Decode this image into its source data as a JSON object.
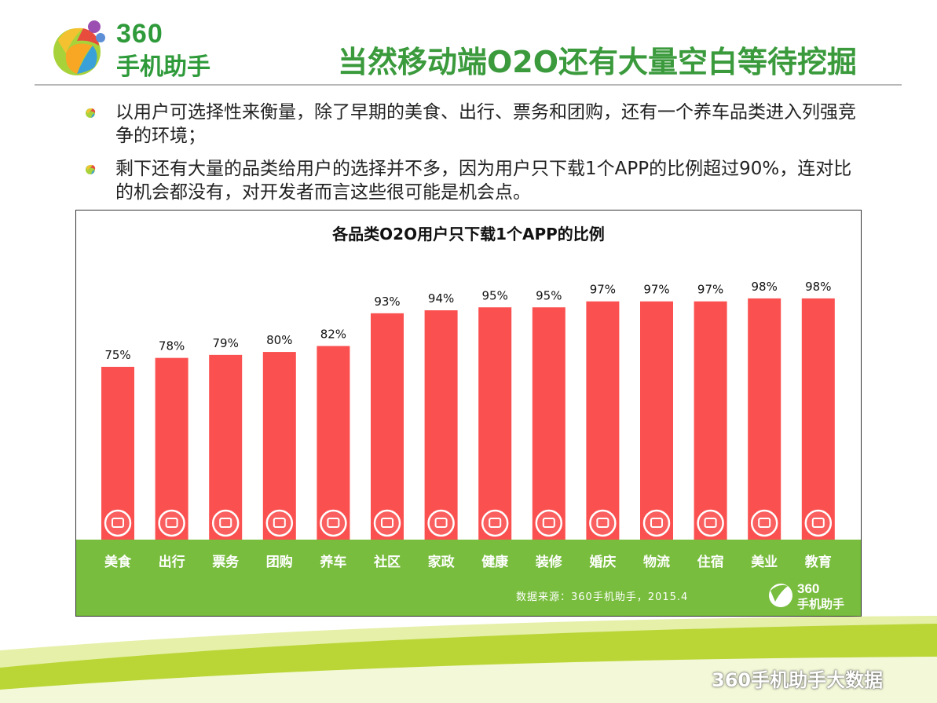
{
  "header": {
    "logo_top": "360",
    "logo_bottom": "手机助手",
    "title": "当然移动端O2O还有大量空白等待挖掘"
  },
  "bullets": [
    "以用户可选择性来衡量，除了早期的美食、出行、票务和团购，还有一个养车品类进入列强竞争的环境；",
    "剩下还有大量的品类给用户的选择并不多，因为用户只下载1个APP的比例超过90%，连对比的机会都没有，对开发者而言这些很可能是机会点。"
  ],
  "chart_data": {
    "type": "bar",
    "title": "各品类O2O用户只下载1个APP的比例",
    "categories": [
      "美食",
      "出行",
      "票务",
      "团购",
      "养车",
      "社区",
      "家政",
      "健康",
      "装修",
      "婚庆",
      "物流",
      "住宿",
      "美业",
      "教育"
    ],
    "values": [
      75,
      78,
      79,
      80,
      82,
      93,
      94,
      95,
      95,
      97,
      97,
      97,
      98,
      98
    ],
    "value_labels": [
      "75%",
      "78%",
      "79%",
      "80%",
      "82%",
      "93%",
      "94%",
      "95%",
      "95%",
      "97%",
      "97%",
      "97%",
      "98%",
      "98%"
    ],
    "icons": [
      "food-icon",
      "car-icon",
      "ticket-icon",
      "shopping-cart-icon",
      "car-service-icon",
      "home-icon",
      "vacuum-icon",
      "heart-pulse-icon",
      "paint-roller-icon",
      "wedding-icon",
      "package-icon",
      "bed-icon",
      "beauty-icon",
      "education-icon"
    ],
    "ylim": [
      0,
      100
    ],
    "source": "数据来源：360手机助手，2015.4",
    "bar_color": "#fb5050",
    "band_color": "#78bd3e"
  },
  "chart_logo": {
    "top": "360",
    "bottom": "手机助手"
  },
  "watermark": "360手机助手大数据",
  "colors": {
    "title_green": "#3a9a3c",
    "lime": "#b6d432",
    "light_lime": "#e2ef9a"
  }
}
